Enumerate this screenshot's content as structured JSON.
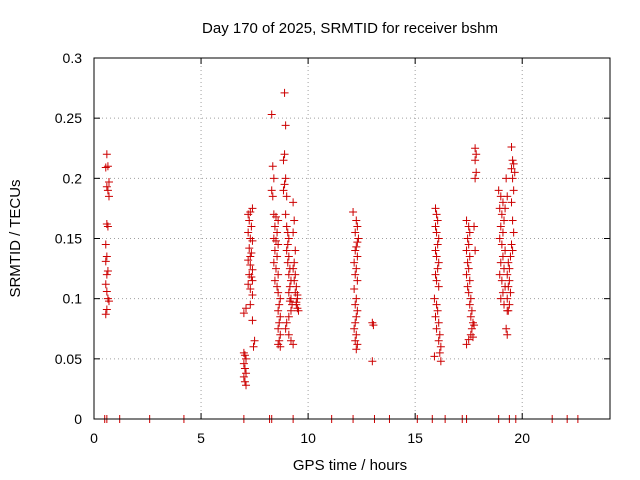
{
  "chart_data": {
    "type": "scatter",
    "title": "Day 170 of 2025, SRMTID for receiver bshm",
    "xlabel": "GPS time / hours",
    "ylabel": "SRMTID / TECUs",
    "xlim": [
      0,
      24.1
    ],
    "ylim": [
      0,
      0.3
    ],
    "grid": true,
    "marker": "plus",
    "color": "#cc0000",
    "x_ticks": [
      0,
      5,
      10,
      15,
      20
    ],
    "x_tick_labels": [
      "0",
      "5",
      "10",
      "15",
      "20"
    ],
    "y_ticks": [
      0,
      0.05,
      0.1,
      0.15,
      0.2,
      0.25,
      0.3
    ],
    "y_tick_labels": [
      "0",
      "0.05",
      "0.1",
      "0.15",
      "0.2",
      "0.25",
      "0.3"
    ],
    "series": [
      {
        "name": "SRMTID",
        "points": [
          [
            0.6,
            0.22
          ],
          [
            0.65,
            0.21
          ],
          [
            0.55,
            0.209
          ],
          [
            0.7,
            0.197
          ],
          [
            0.6,
            0.193
          ],
          [
            0.65,
            0.19
          ],
          [
            0.7,
            0.185
          ],
          [
            0.6,
            0.162
          ],
          [
            0.65,
            0.16
          ],
          [
            0.55,
            0.145
          ],
          [
            0.6,
            0.135
          ],
          [
            0.55,
            0.131
          ],
          [
            0.65,
            0.123
          ],
          [
            0.6,
            0.12
          ],
          [
            0.55,
            0.112
          ],
          [
            0.6,
            0.106
          ],
          [
            0.65,
            0.1
          ],
          [
            0.7,
            0.098
          ],
          [
            0.6,
            0.091
          ],
          [
            0.55,
            0.087
          ],
          [
            7.0,
            0.055
          ],
          [
            7.05,
            0.053
          ],
          [
            7.1,
            0.05
          ],
          [
            7.0,
            0.046
          ],
          [
            7.05,
            0.042
          ],
          [
            7.1,
            0.038
          ],
          [
            7.0,
            0.035
          ],
          [
            7.05,
            0.031
          ],
          [
            7.1,
            0.028
          ],
          [
            7.0,
            0.088
          ],
          [
            7.1,
            0.092
          ],
          [
            7.2,
            0.17
          ],
          [
            7.3,
            0.172
          ],
          [
            7.4,
            0.175
          ],
          [
            7.25,
            0.165
          ],
          [
            7.35,
            0.16
          ],
          [
            7.2,
            0.155
          ],
          [
            7.3,
            0.15
          ],
          [
            7.4,
            0.148
          ],
          [
            7.25,
            0.142
          ],
          [
            7.35,
            0.138
          ],
          [
            7.2,
            0.132
          ],
          [
            7.3,
            0.128
          ],
          [
            7.4,
            0.124
          ],
          [
            7.25,
            0.12
          ],
          [
            7.35,
            0.118
          ],
          [
            7.2,
            0.112
          ],
          [
            7.3,
            0.108
          ],
          [
            7.4,
            0.103
          ],
          [
            7.3,
            0.095
          ],
          [
            7.4,
            0.082
          ],
          [
            7.5,
            0.065
          ],
          [
            7.45,
            0.06
          ],
          [
            7.4,
            0.115
          ],
          [
            7.3,
            0.135
          ],
          [
            8.3,
            0.253
          ],
          [
            8.35,
            0.21
          ],
          [
            8.4,
            0.2
          ],
          [
            8.3,
            0.19
          ],
          [
            8.35,
            0.185
          ],
          [
            8.4,
            0.17
          ],
          [
            8.5,
            0.168
          ],
          [
            8.6,
            0.165
          ],
          [
            8.45,
            0.16
          ],
          [
            8.55,
            0.155
          ],
          [
            8.4,
            0.15
          ],
          [
            8.5,
            0.148
          ],
          [
            8.6,
            0.145
          ],
          [
            8.45,
            0.14
          ],
          [
            8.55,
            0.135
          ],
          [
            8.4,
            0.13
          ],
          [
            8.5,
            0.125
          ],
          [
            8.6,
            0.12
          ],
          [
            8.45,
            0.115
          ],
          [
            8.55,
            0.11
          ],
          [
            8.6,
            0.105
          ],
          [
            8.7,
            0.1
          ],
          [
            8.65,
            0.095
          ],
          [
            8.6,
            0.09
          ],
          [
            8.7,
            0.085
          ],
          [
            8.65,
            0.08
          ],
          [
            8.6,
            0.075
          ],
          [
            8.7,
            0.07
          ],
          [
            8.65,
            0.065
          ],
          [
            8.6,
            0.062
          ],
          [
            8.7,
            0.06
          ],
          [
            8.9,
            0.271
          ],
          [
            8.95,
            0.244
          ],
          [
            8.9,
            0.22
          ],
          [
            8.85,
            0.215
          ],
          [
            8.95,
            0.2
          ],
          [
            8.9,
            0.195
          ],
          [
            8.85,
            0.19
          ],
          [
            9.0,
            0.185
          ],
          [
            8.95,
            0.17
          ],
          [
            9.0,
            0.16
          ],
          [
            9.05,
            0.155
          ],
          [
            9.1,
            0.15
          ],
          [
            9.05,
            0.145
          ],
          [
            9.0,
            0.14
          ],
          [
            9.1,
            0.135
          ],
          [
            9.05,
            0.13
          ],
          [
            9.15,
            0.125
          ],
          [
            9.1,
            0.12
          ],
          [
            9.2,
            0.115
          ],
          [
            9.15,
            0.11
          ],
          [
            9.1,
            0.105
          ],
          [
            9.2,
            0.1
          ],
          [
            9.15,
            0.098
          ],
          [
            9.25,
            0.095
          ],
          [
            9.2,
            0.09
          ],
          [
            9.1,
            0.085
          ],
          [
            9.0,
            0.08
          ],
          [
            8.95,
            0.075
          ],
          [
            9.1,
            0.07
          ],
          [
            9.2,
            0.065
          ],
          [
            9.3,
            0.062
          ],
          [
            9.3,
            0.18
          ],
          [
            9.35,
            0.165
          ],
          [
            9.3,
            0.155
          ],
          [
            9.4,
            0.14
          ],
          [
            9.35,
            0.13
          ],
          [
            9.4,
            0.12
          ],
          [
            9.45,
            0.11
          ],
          [
            9.4,
            0.105
          ],
          [
            9.5,
            0.1
          ],
          [
            9.45,
            0.095
          ],
          [
            9.5,
            0.092
          ],
          [
            9.55,
            0.09
          ],
          [
            9.45,
            0.097
          ],
          [
            9.5,
            0.103
          ],
          [
            9.35,
            0.115
          ],
          [
            9.3,
            0.125
          ],
          [
            12.1,
            0.172
          ],
          [
            12.25,
            0.165
          ],
          [
            12.3,
            0.16
          ],
          [
            12.2,
            0.155
          ],
          [
            12.35,
            0.15
          ],
          [
            12.3,
            0.147
          ],
          [
            12.25,
            0.143
          ],
          [
            12.2,
            0.14
          ],
          [
            12.3,
            0.135
          ],
          [
            12.15,
            0.13
          ],
          [
            12.25,
            0.125
          ],
          [
            12.2,
            0.12
          ],
          [
            12.3,
            0.115
          ],
          [
            12.15,
            0.108
          ],
          [
            12.25,
            0.1
          ],
          [
            12.2,
            0.095
          ],
          [
            12.3,
            0.09
          ],
          [
            12.25,
            0.085
          ],
          [
            12.2,
            0.08
          ],
          [
            12.15,
            0.075
          ],
          [
            12.25,
            0.07
          ],
          [
            12.2,
            0.065
          ],
          [
            12.3,
            0.062
          ],
          [
            12.25,
            0.058
          ],
          [
            13.0,
            0.08
          ],
          [
            13.05,
            0.078
          ],
          [
            13.0,
            0.048
          ],
          [
            15.95,
            0.175
          ],
          [
            16.0,
            0.17
          ],
          [
            16.05,
            0.165
          ],
          [
            15.95,
            0.16
          ],
          [
            16.0,
            0.155
          ],
          [
            16.1,
            0.15
          ],
          [
            16.05,
            0.145
          ],
          [
            15.95,
            0.14
          ],
          [
            16.0,
            0.135
          ],
          [
            16.1,
            0.13
          ],
          [
            16.05,
            0.125
          ],
          [
            15.95,
            0.12
          ],
          [
            16.0,
            0.115
          ],
          [
            16.1,
            0.11
          ],
          [
            15.9,
            0.1
          ],
          [
            16.0,
            0.095
          ],
          [
            16.05,
            0.09
          ],
          [
            15.95,
            0.085
          ],
          [
            16.1,
            0.08
          ],
          [
            16.0,
            0.075
          ],
          [
            16.15,
            0.07
          ],
          [
            16.1,
            0.065
          ],
          [
            16.2,
            0.06
          ],
          [
            16.15,
            0.055
          ],
          [
            16.2,
            0.048
          ],
          [
            15.9,
            0.052
          ],
          [
            17.4,
            0.165
          ],
          [
            17.5,
            0.16
          ],
          [
            17.55,
            0.155
          ],
          [
            17.45,
            0.15
          ],
          [
            17.5,
            0.145
          ],
          [
            17.4,
            0.14
          ],
          [
            17.55,
            0.135
          ],
          [
            17.45,
            0.13
          ],
          [
            17.5,
            0.125
          ],
          [
            17.4,
            0.12
          ],
          [
            17.55,
            0.115
          ],
          [
            17.45,
            0.11
          ],
          [
            17.5,
            0.105
          ],
          [
            17.6,
            0.1
          ],
          [
            17.55,
            0.095
          ],
          [
            17.65,
            0.09
          ],
          [
            17.6,
            0.085
          ],
          [
            17.7,
            0.08
          ],
          [
            17.65,
            0.075
          ],
          [
            17.6,
            0.07
          ],
          [
            17.5,
            0.066
          ],
          [
            17.4,
            0.062
          ],
          [
            17.7,
            0.068
          ],
          [
            17.75,
            0.078
          ],
          [
            17.8,
            0.225
          ],
          [
            17.85,
            0.22
          ],
          [
            17.8,
            0.215
          ],
          [
            17.85,
            0.205
          ],
          [
            17.8,
            0.2
          ],
          [
            17.75,
            0.16
          ],
          [
            17.8,
            0.14
          ],
          [
            18.9,
            0.19
          ],
          [
            19.0,
            0.185
          ],
          [
            19.1,
            0.18
          ],
          [
            18.95,
            0.175
          ],
          [
            19.05,
            0.17
          ],
          [
            19.15,
            0.165
          ],
          [
            19.0,
            0.16
          ],
          [
            19.1,
            0.155
          ],
          [
            18.95,
            0.15
          ],
          [
            19.05,
            0.145
          ],
          [
            19.2,
            0.14
          ],
          [
            19.1,
            0.135
          ],
          [
            19.0,
            0.13
          ],
          [
            19.15,
            0.125
          ],
          [
            18.95,
            0.12
          ],
          [
            19.05,
            0.115
          ],
          [
            19.2,
            0.11
          ],
          [
            19.1,
            0.105
          ],
          [
            19.0,
            0.1
          ],
          [
            19.15,
            0.095
          ],
          [
            19.3,
            0.09
          ],
          [
            19.25,
            0.075
          ],
          [
            19.3,
            0.07
          ],
          [
            19.5,
            0.226
          ],
          [
            19.55,
            0.215
          ],
          [
            19.6,
            0.212
          ],
          [
            19.5,
            0.208
          ],
          [
            19.65,
            0.205
          ],
          [
            19.55,
            0.2
          ],
          [
            19.6,
            0.19
          ],
          [
            19.5,
            0.18
          ],
          [
            19.55,
            0.165
          ],
          [
            19.6,
            0.155
          ],
          [
            19.5,
            0.145
          ],
          [
            19.55,
            0.14
          ],
          [
            19.45,
            0.135
          ],
          [
            19.35,
            0.13
          ],
          [
            19.4,
            0.125
          ],
          [
            19.3,
            0.12
          ],
          [
            19.4,
            0.115
          ],
          [
            19.35,
            0.11
          ],
          [
            19.45,
            0.105
          ],
          [
            19.3,
            0.1
          ],
          [
            19.4,
            0.095
          ],
          [
            19.35,
            0.09
          ],
          [
            19.25,
            0.2
          ],
          [
            19.3,
            0.185
          ],
          [
            19.2,
            0.175
          ],
          [
            0.5,
            0
          ],
          [
            0.6,
            0
          ],
          [
            1.2,
            0
          ],
          [
            2.6,
            0
          ],
          [
            4.2,
            0
          ],
          [
            7.0,
            0
          ],
          [
            8.2,
            0
          ],
          [
            8.3,
            0
          ],
          [
            9.3,
            0
          ],
          [
            11.1,
            0
          ],
          [
            12.1,
            0
          ],
          [
            13.1,
            0
          ],
          [
            13.8,
            0
          ],
          [
            15.1,
            0
          ],
          [
            15.8,
            0
          ],
          [
            16.4,
            0
          ],
          [
            17.2,
            0
          ],
          [
            17.4,
            0
          ],
          [
            18.9,
            0
          ],
          [
            19.4,
            0
          ],
          [
            19.7,
            0
          ],
          [
            21.4,
            0
          ],
          [
            22.1,
            0
          ],
          [
            22.6,
            0
          ]
        ]
      }
    ]
  }
}
